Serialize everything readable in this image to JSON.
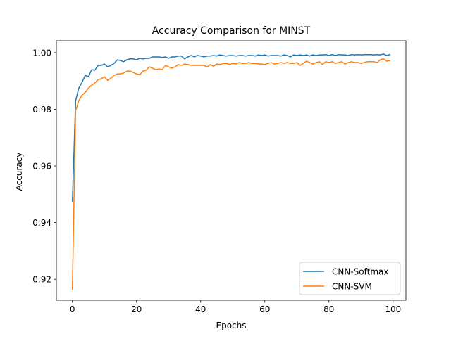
{
  "chart_data": {
    "type": "line",
    "title": "Accuracy Comparison for MINST",
    "xlabel": "Epochs",
    "ylabel": "Accuracy",
    "xlim": [
      -5,
      104
    ],
    "ylim": [
      0.9126,
      1.0042
    ],
    "xticks": [
      0,
      20,
      40,
      60,
      80,
      100
    ],
    "yticks": [
      0.92,
      0.94,
      0.96,
      0.98,
      1.0
    ],
    "ytick_labels": [
      "0.92",
      "0.94",
      "0.96",
      "0.98",
      "1.00"
    ],
    "grid": false,
    "legend_position": "lower-right",
    "series": [
      {
        "name": "CNN-Softmax",
        "color": "#1f77b4",
        "x": [
          0,
          1,
          2,
          3,
          4,
          5,
          6,
          7,
          8,
          9,
          10,
          11,
          12,
          13,
          14,
          15,
          16,
          17,
          18,
          19,
          20,
          21,
          22,
          23,
          24,
          25,
          26,
          27,
          28,
          29,
          30,
          31,
          32,
          33,
          34,
          35,
          36,
          37,
          38,
          39,
          40,
          41,
          42,
          43,
          44,
          45,
          46,
          47,
          48,
          49,
          50,
          51,
          52,
          53,
          54,
          55,
          56,
          57,
          58,
          59,
          60,
          61,
          62,
          63,
          64,
          65,
          66,
          67,
          68,
          69,
          70,
          71,
          72,
          73,
          74,
          75,
          76,
          77,
          78,
          79,
          80,
          81,
          82,
          83,
          84,
          85,
          86,
          87,
          88,
          89,
          90,
          91,
          92,
          93,
          94,
          95,
          96,
          97,
          98,
          99
        ],
        "y": [
          0.9475,
          0.983,
          0.9875,
          0.9895,
          0.992,
          0.9915,
          0.994,
          0.9938,
          0.9955,
          0.9955,
          0.996,
          0.995,
          0.9955,
          0.9962,
          0.9975,
          0.9972,
          0.9968,
          0.9975,
          0.9978,
          0.9978,
          0.9975,
          0.998,
          0.9978,
          0.998,
          0.998,
          0.9985,
          0.9985,
          0.9985,
          0.9983,
          0.9985,
          0.998,
          0.9985,
          0.9985,
          0.9988,
          0.9988,
          0.9978,
          0.9985,
          0.999,
          0.9985,
          0.999,
          0.9988,
          0.9985,
          0.9988,
          0.9988,
          0.999,
          0.9988,
          0.9992,
          0.999,
          0.9988,
          0.999,
          0.999,
          0.9988,
          0.999,
          0.999,
          0.9988,
          0.999,
          0.999,
          0.9988,
          0.9992,
          0.999,
          0.9992,
          0.9988,
          0.999,
          0.999,
          0.999,
          0.9988,
          0.9992,
          0.999,
          0.9985,
          0.9992,
          0.999,
          0.9992,
          0.999,
          0.9992,
          0.9988,
          0.9992,
          0.999,
          0.9992,
          0.9992,
          0.9993,
          0.999,
          0.9993,
          0.999,
          0.9993,
          0.9992,
          0.9992,
          0.999,
          0.9993,
          0.9992,
          0.9993,
          0.9992,
          0.9993,
          0.9993,
          0.9993,
          0.9992,
          0.9993,
          0.9992,
          0.9995,
          0.999,
          0.9993
        ]
      },
      {
        "name": "CNN-SVM",
        "color": "#ff7f0e",
        "x": [
          0,
          1,
          2,
          3,
          4,
          5,
          6,
          7,
          8,
          9,
          10,
          11,
          12,
          13,
          14,
          15,
          16,
          17,
          18,
          19,
          20,
          21,
          22,
          23,
          24,
          25,
          26,
          27,
          28,
          29,
          30,
          31,
          32,
          33,
          34,
          35,
          36,
          37,
          38,
          39,
          40,
          41,
          42,
          43,
          44,
          45,
          46,
          47,
          48,
          49,
          50,
          51,
          52,
          53,
          54,
          55,
          56,
          57,
          58,
          59,
          60,
          61,
          62,
          63,
          64,
          65,
          66,
          67,
          68,
          69,
          70,
          71,
          72,
          73,
          74,
          75,
          76,
          77,
          78,
          79,
          80,
          81,
          82,
          83,
          84,
          85,
          86,
          87,
          88,
          89,
          90,
          91,
          92,
          93,
          94,
          95,
          96,
          97,
          98,
          99
        ],
        "y": [
          0.9165,
          0.9795,
          0.983,
          0.985,
          0.986,
          0.9875,
          0.9885,
          0.9893,
          0.9905,
          0.9908,
          0.9915,
          0.9902,
          0.991,
          0.992,
          0.9925,
          0.9925,
          0.9928,
          0.9935,
          0.9935,
          0.993,
          0.9925,
          0.9922,
          0.9935,
          0.9938,
          0.995,
          0.9945,
          0.994,
          0.9942,
          0.994,
          0.9955,
          0.995,
          0.9945,
          0.995,
          0.9958,
          0.9955,
          0.996,
          0.9958,
          0.9955,
          0.9955,
          0.9955,
          0.9955,
          0.9955,
          0.995,
          0.9958,
          0.9952,
          0.996,
          0.9958,
          0.9962,
          0.9962,
          0.9958,
          0.9962,
          0.996,
          0.9965,
          0.9962,
          0.9962,
          0.9965,
          0.9962,
          0.9962,
          0.996,
          0.996,
          0.9958,
          0.9962,
          0.9965,
          0.996,
          0.9962,
          0.9965,
          0.9962,
          0.9965,
          0.9962,
          0.9962,
          0.9965,
          0.9955,
          0.9962,
          0.997,
          0.9965,
          0.996,
          0.9965,
          0.9968,
          0.9958,
          0.9968,
          0.9965,
          0.9968,
          0.9962,
          0.9965,
          0.9968,
          0.996,
          0.9965,
          0.9968,
          0.9965,
          0.9965,
          0.9962,
          0.9965,
          0.9968,
          0.9968,
          0.9968,
          0.9965,
          0.9975,
          0.9978,
          0.997,
          0.9972
        ]
      }
    ]
  }
}
